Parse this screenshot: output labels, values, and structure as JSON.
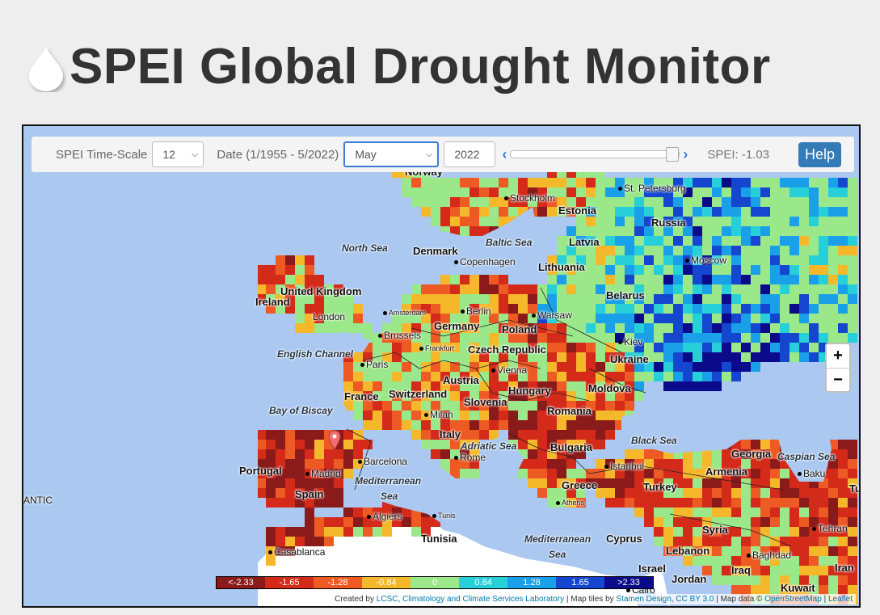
{
  "title": "SPEI Global Drought Monitor",
  "controls": {
    "timescale_label": "SPEI Time-Scale",
    "timescale_value": "12",
    "date_label": "Date (1/1955 - 5/2022)",
    "month_value": "May",
    "year_value": "2022",
    "prev_icon": "chevron-left-icon",
    "next_icon": "chevron-right-icon",
    "slider_fraction": 1.0,
    "spei_text": "SPEI: -1.03",
    "help_label": "Help"
  },
  "zoom": {
    "in_label": "+",
    "out_label": "−"
  },
  "legend": [
    {
      "label": "<-2.33",
      "color": "#8b1a1a"
    },
    {
      "label": "-1.65",
      "color": "#d42a1a"
    },
    {
      "label": "-1.28",
      "color": "#ee5a24"
    },
    {
      "label": "-0.84",
      "color": "#f6b82b"
    },
    {
      "label": "0",
      "color": "#9ae88a"
    },
    {
      "label": "0.84",
      "color": "#27d0d8"
    },
    {
      "label": "1.28",
      "color": "#1aa0e8"
    },
    {
      "label": "1.65",
      "color": "#1446d0"
    },
    {
      "label": ">2.33",
      "color": "#0a0a8a"
    }
  ],
  "attribution": {
    "prefix": "Created by ",
    "lcsc": "LCSC",
    "sep1": ", ",
    "lab": "Climatology and Climate Services Laboratory",
    "tiles": " | Map tiles by ",
    "stamen": "Stamen Design",
    "sep2": ", ",
    "cc": "CC BY 3.0",
    "mapdata": " | Map data © ",
    "osm": "OpenStreetMap",
    "sep3": " | ",
    "leaflet": "Leaflet"
  },
  "map_labels": {
    "norway": "Norway",
    "stockholm": "Stockholm",
    "stpetersburg": "St. Petersburg",
    "estonia": "Estonia",
    "russia": "Russia",
    "northsea": "North Sea",
    "denmark": "Denmark",
    "balticsea": "Baltic Sea",
    "latvia": "Latvia",
    "copenhagen": "Copenhagen",
    "lithuania": "Lithuania",
    "moscow": "Moscow",
    "uk": "United Kingdom",
    "ireland": "Ireland",
    "belarus": "Belarus",
    "amsterdam": "Amsterdam",
    "berlin": "Berlin",
    "warsaw": "Warsaw",
    "london": "London",
    "germany": "Germany",
    "poland": "Poland",
    "brussels": "Brussels",
    "kiev": "Kiev",
    "englishchannel": "English Channel",
    "frankfurt": "Frankfurt",
    "czech": "Czech Republic",
    "ukraine": "Ukraine",
    "paris": "Paris",
    "vienna": "Vienna",
    "austria": "Austria",
    "hungary": "Hungary",
    "moldova": "Moldova",
    "france": "France",
    "switzerland": "Switzerland",
    "slovenia": "Slovenia",
    "bayofbiscay": "Bay of Biscay",
    "milan": "Milan",
    "romania": "Romania",
    "italy": "Italy",
    "blacksea": "Black Sea",
    "adriaticsea": "Adriatic Sea",
    "bulgaria": "Bulgaria",
    "georgia": "Georgia",
    "caspiansea": "Caspian Sea",
    "portugal": "Portugal",
    "barcelona": "Barcelona",
    "rome": "Rome",
    "istanbul": "Istanbul",
    "madrid": "Madrid",
    "armenia": "Armenia",
    "baku": "Baku",
    "mediterranean1": "Mediterranean",
    "sea1": "Sea",
    "greece": "Greece",
    "turkey": "Turkey",
    "spain": "Spain",
    "atlantic": "ANTIC",
    "athens": "Athens",
    "algiers": "Algiers",
    "tunis": "Tunis",
    "tu": "Tu",
    "syria": "Syria",
    "tehran": "Tehran",
    "tunisia": "Tunisia",
    "mediterranean2": "Mediterranean",
    "cyprus": "Cyprus",
    "lebanon": "Lebanon",
    "casablanca": "Casablanca",
    "sea2": "Sea",
    "baghdad": "Baghdad",
    "israel": "Israel",
    "iran": "Iran",
    "iraq": "Iraq",
    "jordan": "Jordan",
    "cairo": "Cairo",
    "kuwait": "Kuwait"
  },
  "colors": {
    "water": "#aac8f0",
    "land_blank": "#ffffff",
    "accent": "#337ab7",
    "marker": "#f07070"
  }
}
